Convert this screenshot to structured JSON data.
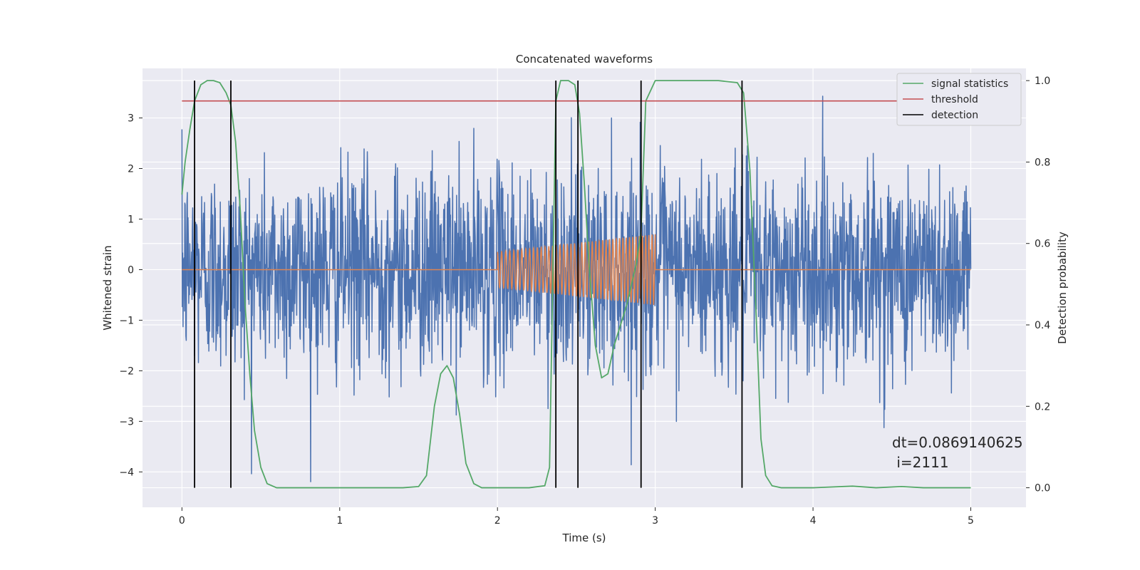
{
  "chart_data": {
    "type": "line",
    "title": "Concatenated waveforms",
    "xlabel": "Time (s)",
    "ylabel": "Whitened strain",
    "y2label": "Detection probability",
    "xlim": [
      -0.25,
      5.35
    ],
    "ylim": [
      -4.7,
      3.98
    ],
    "y2lim": [
      -0.048,
      1.03
    ],
    "xticks": [
      0,
      1,
      2,
      3,
      4,
      5
    ],
    "yticks": [
      -4,
      -3,
      -2,
      -1,
      0,
      1,
      2,
      3
    ],
    "y2ticks": [
      0.0,
      0.2,
      0.4,
      0.6,
      0.8,
      1.0
    ],
    "xtick_labels": [
      "0",
      "1",
      "2",
      "3",
      "4",
      "5"
    ],
    "ytick_labels": [
      "−4",
      "−3",
      "−2",
      "−1",
      "0",
      "1",
      "2",
      "3"
    ],
    "y2tick_labels": [
      "0.0",
      "0.2",
      "0.4",
      "0.6",
      "0.8",
      "1.0"
    ],
    "grid": true,
    "legend_position": "top-right",
    "colors": {
      "background": "#eaeaf2",
      "grid": "#ffffff",
      "strain": "#4c72b0",
      "template": "#dd8452",
      "signal_statistics": "#55a868",
      "threshold": "#c44e52",
      "detection": "#000000"
    },
    "strain": {
      "x_range": [
        0,
        5
      ],
      "amplitude_range": [
        -4.35,
        3.6
      ],
      "description_of_shape": "dense noise"
    },
    "template_chirp": {
      "x_range": [
        2.0,
        3.0
      ],
      "amplitude_start": 0.35,
      "amplitude_end": 0.7
    },
    "series": [
      {
        "name": "signal statistics",
        "axis": "right",
        "x": [
          0,
          0.02,
          0.05,
          0.08,
          0.12,
          0.16,
          0.2,
          0.24,
          0.28,
          0.31,
          0.34,
          0.37,
          0.4,
          0.43,
          0.46,
          0.5,
          0.54,
          0.6,
          0.8,
          1.0,
          1.2,
          1.4,
          1.5,
          1.55,
          1.6,
          1.64,
          1.68,
          1.72,
          1.76,
          1.8,
          1.85,
          1.9,
          2.0,
          2.2,
          2.3,
          2.33,
          2.35,
          2.37,
          2.4,
          2.45,
          2.49,
          2.52,
          2.55,
          2.58,
          2.62,
          2.66,
          2.7,
          2.74,
          2.78,
          2.82,
          2.85,
          2.88,
          2.91,
          2.94,
          3.0,
          3.2,
          3.4,
          3.52,
          3.56,
          3.6,
          3.64,
          3.67,
          3.7,
          3.74,
          3.8,
          4.0,
          4.25,
          4.4,
          4.56,
          4.7,
          5.0
        ],
        "y": [
          0.72,
          0.8,
          0.88,
          0.95,
          0.99,
          1.0,
          1.0,
          0.995,
          0.97,
          0.94,
          0.85,
          0.68,
          0.45,
          0.28,
          0.14,
          0.05,
          0.01,
          0.0,
          0.0,
          0.0,
          0.0,
          0.0,
          0.003,
          0.03,
          0.2,
          0.28,
          0.3,
          0.27,
          0.18,
          0.06,
          0.01,
          0.0,
          0.0,
          0.0,
          0.005,
          0.05,
          0.5,
          0.95,
          1.0,
          1.0,
          0.99,
          0.92,
          0.75,
          0.55,
          0.35,
          0.27,
          0.28,
          0.35,
          0.4,
          0.45,
          0.5,
          0.55,
          0.63,
          0.95,
          1.0,
          1.0,
          1.0,
          0.995,
          0.97,
          0.78,
          0.42,
          0.12,
          0.03,
          0.005,
          0.0,
          0.0,
          0.004,
          0.0,
          0.003,
          0.0,
          0.0
        ]
      },
      {
        "name": "threshold",
        "axis": "right",
        "x": [
          0,
          5
        ],
        "y": [
          0.95,
          0.95
        ]
      },
      {
        "name": "detection",
        "axis": "right",
        "x_positions": [
          0.08,
          0.31,
          2.37,
          2.51,
          2.91,
          3.55
        ],
        "y_range": [
          0.0,
          1.0
        ]
      }
    ],
    "annotations": [
      "dt=0.0869140625",
      " i=2111"
    ]
  }
}
